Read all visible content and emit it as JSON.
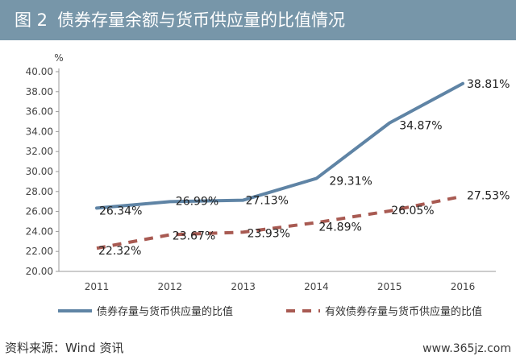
{
  "header": {
    "figure_number": "图 2",
    "title": "债券存量余额与货币供应量的比值情况"
  },
  "chart_data": {
    "type": "line",
    "x": [
      "2011",
      "2012",
      "2013",
      "2014",
      "2015",
      "2016"
    ],
    "y_unit": "%",
    "ylim": [
      20,
      40
    ],
    "ytick_step": 2,
    "ytick_labels": [
      "20.00",
      "22.00",
      "24.00",
      "26.00",
      "28.00",
      "30.00",
      "32.00",
      "34.00",
      "36.00",
      "38.00",
      "40.00"
    ],
    "grid": false,
    "legend_position": "bottom",
    "series": [
      {
        "name": "债券存量与货币供应量的比值",
        "style": "solid",
        "color": "#5f84a5",
        "values": [
          26.34,
          26.99,
          27.13,
          29.31,
          34.87,
          38.81
        ],
        "labels": [
          "26.34%",
          "26.99%",
          "27.13%",
          "29.31%",
          "34.87%",
          "38.81%"
        ]
      },
      {
        "name": "有效债券存量与货币供应量的比值",
        "style": "dashed",
        "color": "#a85a52",
        "values": [
          22.32,
          23.67,
          23.93,
          24.89,
          26.05,
          27.53
        ],
        "labels": [
          "22.32%",
          "23.67%",
          "23.93%",
          "24.89%",
          "26.05%",
          "27.53%"
        ]
      }
    ]
  },
  "footer": {
    "source": "资料来源：Wind 资讯",
    "watermark": "www.365jz.com"
  }
}
